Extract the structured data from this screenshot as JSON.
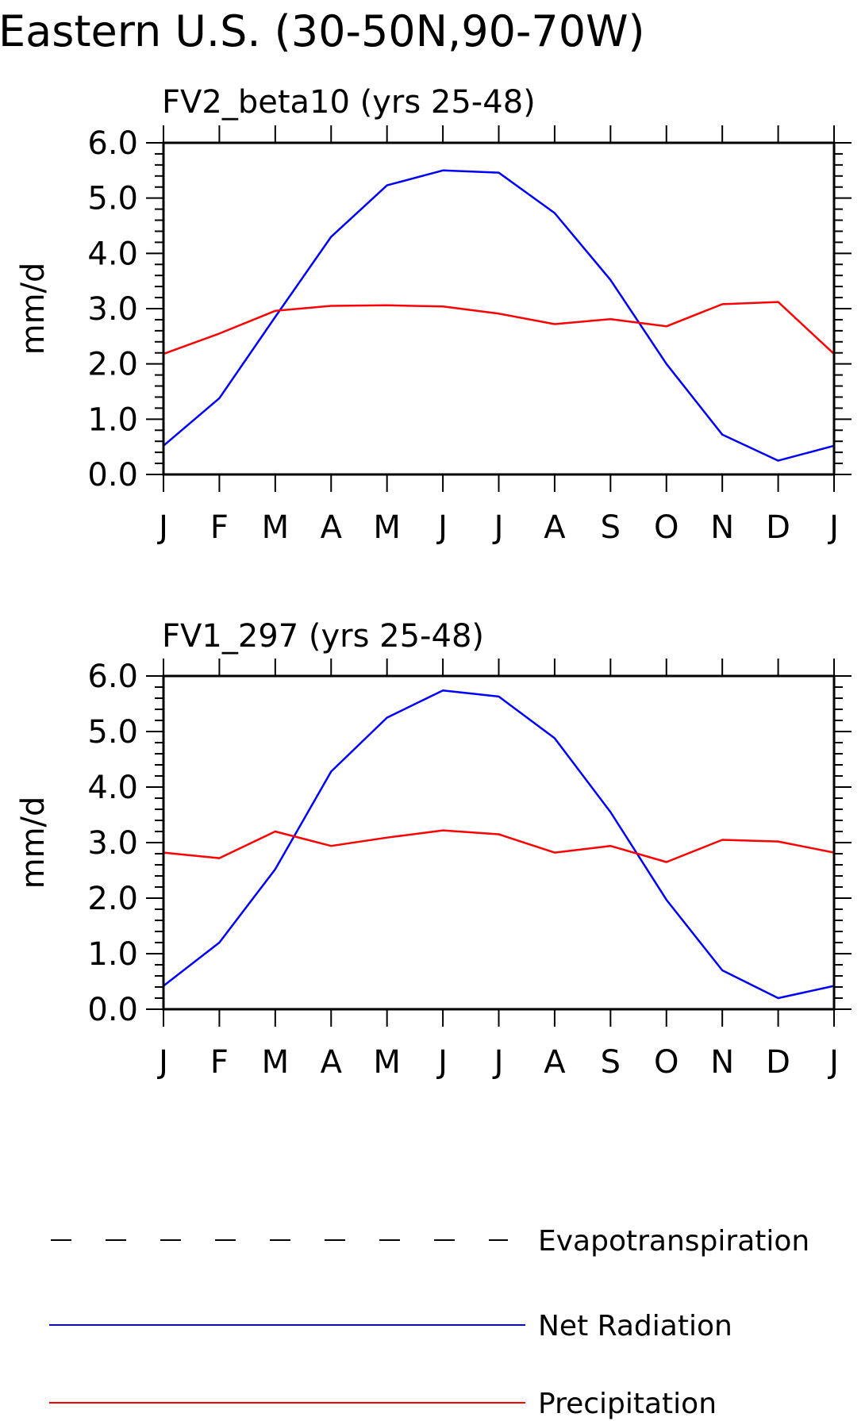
{
  "page_title": "Eastern U.S. (30-50N,90-70W)",
  "legend": [
    {
      "label": "Evapotranspiration",
      "color": "#000000",
      "style": "dashed"
    },
    {
      "label": "Net Radiation",
      "color": "#0000ff",
      "style": "solid"
    },
    {
      "label": "Precipitation",
      "color": "#ff0000",
      "style": "solid"
    }
  ],
  "chart_data": [
    {
      "type": "line",
      "title": "FV2_beta10 (yrs 25-48)",
      "xlabel": "",
      "ylabel": "mm/d",
      "ylim": [
        0,
        6
      ],
      "yticks": [
        "0.0",
        "1.0",
        "2.0",
        "3.0",
        "4.0",
        "5.0",
        "6.0"
      ],
      "categories": [
        "J",
        "F",
        "M",
        "A",
        "M",
        "J",
        "J",
        "A",
        "S",
        "O",
        "N",
        "D",
        "J"
      ],
      "series": [
        {
          "name": "Net Radiation",
          "color": "#0000ff",
          "values": [
            0.52,
            1.38,
            2.85,
            4.3,
            5.23,
            5.5,
            5.46,
            4.73,
            3.52,
            2.0,
            0.72,
            0.25,
            0.52
          ]
        },
        {
          "name": "Precipitation",
          "color": "#ff0000",
          "values": [
            2.18,
            2.55,
            2.96,
            3.05,
            3.06,
            3.04,
            2.91,
            2.72,
            2.81,
            2.68,
            3.08,
            3.12,
            2.18
          ]
        }
      ]
    },
    {
      "type": "line",
      "title": "FV1_297 (yrs 25-48)",
      "xlabel": "",
      "ylabel": "mm/d",
      "ylim": [
        0,
        6
      ],
      "yticks": [
        "0.0",
        "1.0",
        "2.0",
        "3.0",
        "4.0",
        "5.0",
        "6.0"
      ],
      "categories": [
        "J",
        "F",
        "M",
        "A",
        "M",
        "J",
        "J",
        "A",
        "S",
        "O",
        "N",
        "D",
        "J"
      ],
      "series": [
        {
          "name": "Net Radiation",
          "color": "#0000ff",
          "values": [
            0.42,
            1.2,
            2.52,
            4.28,
            5.25,
            5.74,
            5.63,
            4.88,
            3.55,
            1.97,
            0.7,
            0.2,
            0.42
          ]
        },
        {
          "name": "Precipitation",
          "color": "#ff0000",
          "values": [
            2.82,
            2.72,
            3.2,
            2.94,
            3.09,
            3.22,
            3.15,
            2.82,
            2.94,
            2.65,
            3.05,
            3.02,
            2.82
          ]
        }
      ]
    }
  ]
}
